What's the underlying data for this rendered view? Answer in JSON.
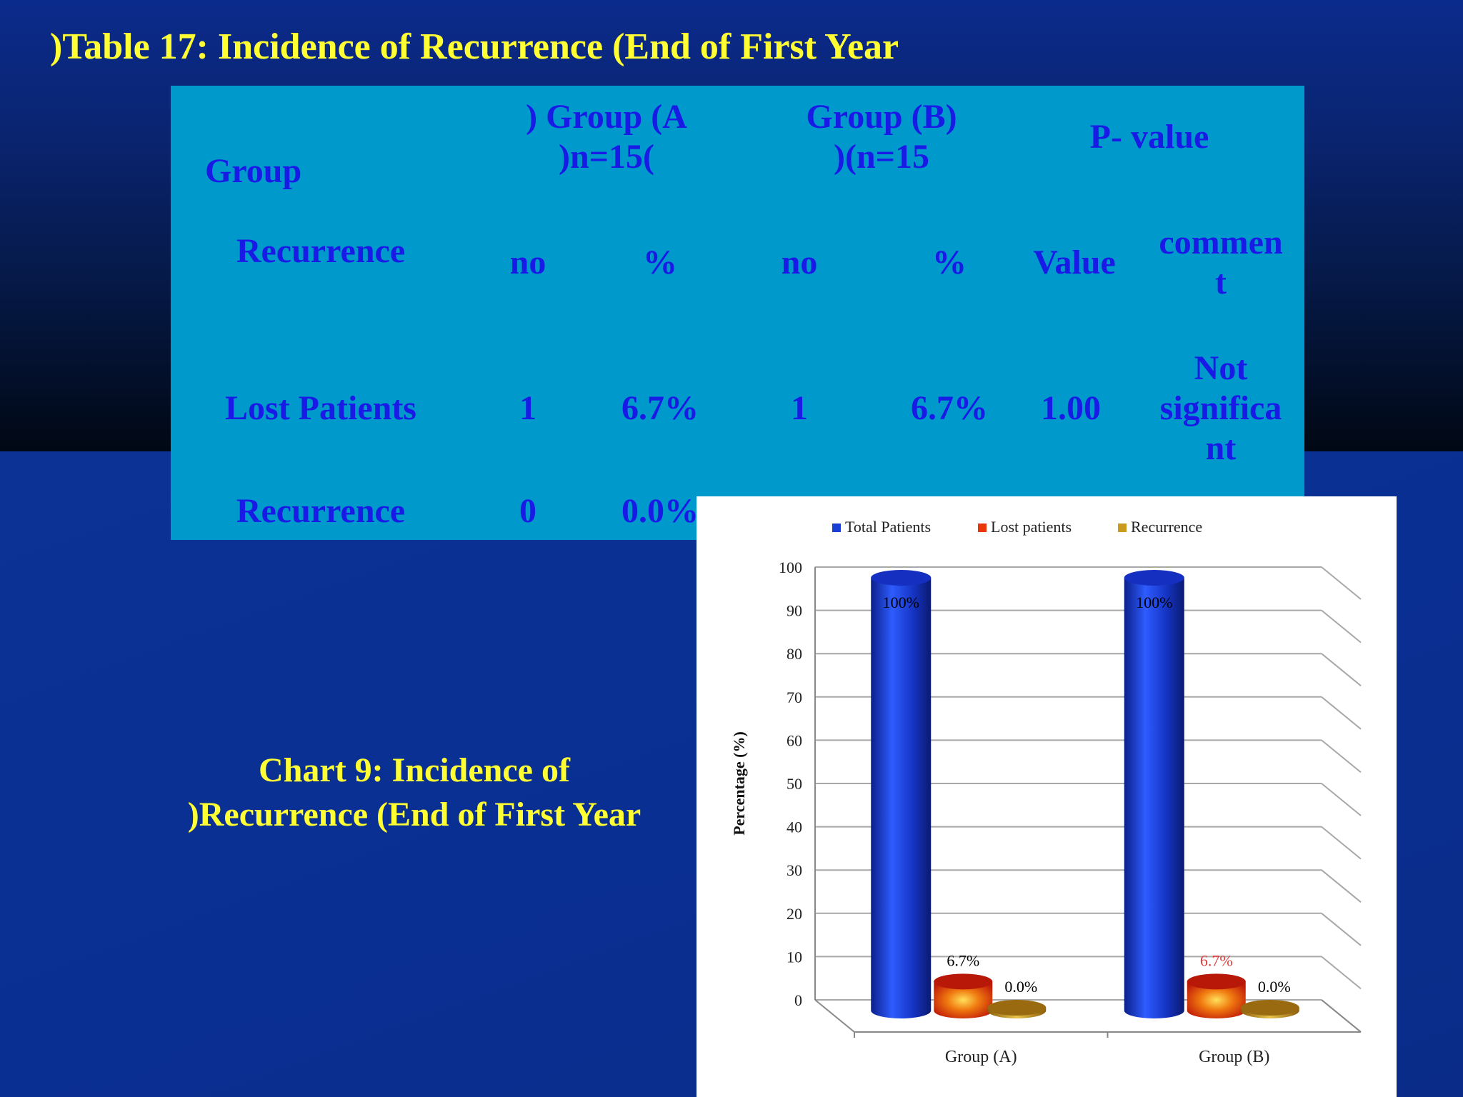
{
  "slide": {
    "title": ")Table 17: Incidence of Recurrence (End of First Year",
    "chart_caption_line1": "Chart 9: Incidence of",
    "chart_caption_line2": ")Recurrence (End of First Year"
  },
  "table": {
    "header": {
      "group_label": "Group",
      "group_a_line1": ") Group (A",
      "group_a_line2": ")n=15(",
      "group_b_line1": "Group (B)",
      "group_b_line2": ")(n=15",
      "pvalue_label": "P- value"
    },
    "subheader": {
      "recurrence_label": "Recurrence",
      "a_no": "no",
      "a_pct": "%",
      "b_no": "no",
      "b_pct": "%",
      "value": "Value",
      "comment_line1": "commen",
      "comment_line2": "t"
    },
    "rows": [
      {
        "label": "Lost Patients",
        "a_no": "1",
        "a_pct": "6.7%",
        "b_no": "1",
        "b_pct": "6.7%",
        "value": "1.00",
        "comment_line1": "Not",
        "comment_line2": "significa",
        "comment_line3": "nt"
      },
      {
        "label": "Recurrence",
        "a_no": "0",
        "a_pct": "0.0%"
      }
    ]
  },
  "chart_data": {
    "type": "bar",
    "categories": [
      "Group (A)",
      "Group (B)"
    ],
    "series": [
      {
        "name": "Total Patients",
        "values": [
          100,
          100
        ],
        "labels": [
          "100%",
          "100%"
        ],
        "color": "#1a3fd6"
      },
      {
        "name": "Lost patients",
        "values": [
          6.7,
          6.7
        ],
        "labels": [
          "6.7%",
          "6.7%"
        ],
        "color": "#e8370a"
      },
      {
        "name": "Recurrence",
        "values": [
          0,
          0
        ],
        "labels": [
          "0.0%",
          "0.0%"
        ],
        "color": "#c89a1e"
      }
    ],
    "title": "",
    "xlabel": "",
    "ylabel": "Percentage (%)",
    "ylim": [
      0,
      100
    ],
    "yticks": [
      0,
      10,
      20,
      30,
      40,
      50,
      60,
      70,
      80,
      90,
      100
    ],
    "grid": true,
    "legend": "top",
    "style": "3d-cylinder",
    "label_colors": [
      "#000000",
      "#000000",
      "#000000",
      "#000000",
      "#e03a3a",
      "#000000"
    ]
  }
}
